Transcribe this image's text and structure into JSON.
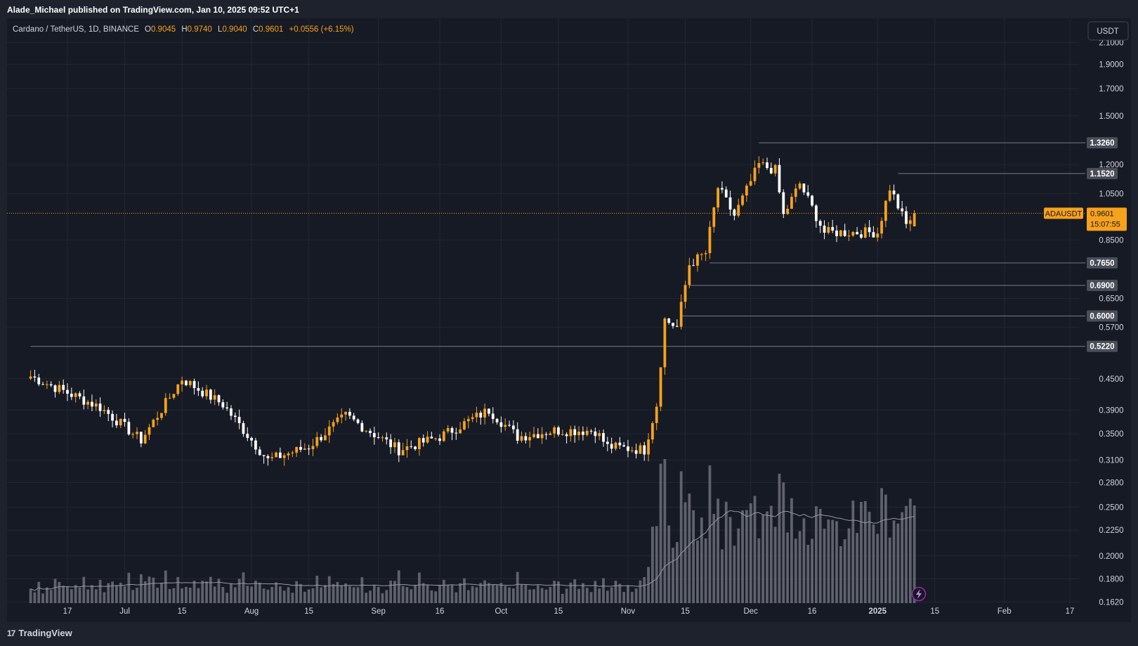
{
  "header": {
    "published": "Alade_Michael published on TradingView.com, Jan 10, 2025 09:52 UTC+1"
  },
  "legend": {
    "symbol": "Cardano / TetherUS, 1D, BINANCE",
    "o_label": "O",
    "o": "0.9045",
    "h_label": "H",
    "h": "0.9740",
    "l_label": "L",
    "l": "0.9040",
    "c_label": "C",
    "c": "0.9601",
    "change": "+0.0556 (+6.15%)"
  },
  "currency_button": "USDT",
  "footer": {
    "brand": "TradingView"
  },
  "colors": {
    "up": "#f7a21b",
    "down": "#ffffff",
    "background": "#161a25",
    "grid": "#232733",
    "axis_text": "#d1d4dc",
    "level_line": "#787b86",
    "price_line": "#f7a21b",
    "volume": "#787b86",
    "volume_ma": "#9598a1"
  },
  "chart_data": {
    "type": "candlestick",
    "symbol": "ADAUSDT",
    "scale": "log",
    "ylim": [
      0.155,
      2.3
    ],
    "y_ticks": [
      "2.1000",
      "1.9000",
      "1.7000",
      "1.5000",
      "1.2000",
      "1.0500",
      "0.8500",
      "0.6500",
      "0.5700",
      "0.4500",
      "0.3900",
      "0.3500",
      "0.3100",
      "0.2800",
      "0.2500",
      "0.2250",
      "0.2000",
      "0.1800",
      "0.1620"
    ],
    "x_ticks": [
      {
        "label": "17",
        "date": "2024-06-17"
      },
      {
        "label": "Jul",
        "date": "2024-07-01"
      },
      {
        "label": "15",
        "date": "2024-07-15"
      },
      {
        "label": "Aug",
        "date": "2024-08-01"
      },
      {
        "label": "15",
        "date": "2024-08-15"
      },
      {
        "label": "Sep",
        "date": "2024-09-01"
      },
      {
        "label": "16",
        "date": "2024-09-16"
      },
      {
        "label": "Oct",
        "date": "2024-10-01"
      },
      {
        "label": "15",
        "date": "2024-10-15"
      },
      {
        "label": "Nov",
        "date": "2024-11-01"
      },
      {
        "label": "15",
        "date": "2024-11-15"
      },
      {
        "label": "Dec",
        "date": "2024-12-01"
      },
      {
        "label": "16",
        "date": "2024-12-16"
      },
      {
        "label": "2025",
        "date": "2025-01-01"
      },
      {
        "label": "15",
        "date": "2025-01-15"
      },
      {
        "label": "Feb",
        "date": "2025-02-01"
      },
      {
        "label": "17",
        "date": "2025-02-17"
      }
    ],
    "levels": [
      {
        "label": "1.3260",
        "value": 1.326,
        "from": "2024-12-03"
      },
      {
        "label": "1.1520",
        "value": 1.152,
        "from": "2025-01-06"
      },
      {
        "label": "0.7650",
        "value": 0.765,
        "from": "2024-11-21"
      },
      {
        "label": "0.6900",
        "value": 0.69,
        "from": "2024-11-16"
      },
      {
        "label": "0.6000",
        "value": 0.6,
        "from": "2024-11-14"
      },
      {
        "label": "0.5220",
        "value": 0.522,
        "from": "2024-06-08"
      }
    ],
    "last_price": {
      "symbol": "ADAUSDT",
      "price": "0.9601",
      "value": 0.9601,
      "countdown": "15:07:55"
    },
    "key_closes": [
      {
        "date": "2024-06-08",
        "close": 0.455
      },
      {
        "date": "2024-06-25",
        "close": 0.395
      },
      {
        "date": "2024-07-05",
        "close": 0.34
      },
      {
        "date": "2024-07-15",
        "close": 0.45
      },
      {
        "date": "2024-07-25",
        "close": 0.4
      },
      {
        "date": "2024-08-05",
        "close": 0.31
      },
      {
        "date": "2024-08-15",
        "close": 0.33
      },
      {
        "date": "2024-08-24",
        "close": 0.38
      },
      {
        "date": "2024-09-06",
        "close": 0.325
      },
      {
        "date": "2024-09-16",
        "close": 0.345
      },
      {
        "date": "2024-09-28",
        "close": 0.39
      },
      {
        "date": "2024-10-05",
        "close": 0.345
      },
      {
        "date": "2024-10-14",
        "close": 0.355
      },
      {
        "date": "2024-10-24",
        "close": 0.355
      },
      {
        "date": "2024-10-27",
        "close": 0.33
      },
      {
        "date": "2024-11-05",
        "close": 0.325
      },
      {
        "date": "2024-11-08",
        "close": 0.4
      },
      {
        "date": "2024-11-10",
        "close": 0.59
      },
      {
        "date": "2024-11-13",
        "close": 0.57
      },
      {
        "date": "2024-11-16",
        "close": 0.76
      },
      {
        "date": "2024-11-20",
        "close": 0.8
      },
      {
        "date": "2024-11-23",
        "close": 1.08
      },
      {
        "date": "2024-11-27",
        "close": 0.95
      },
      {
        "date": "2024-12-03",
        "close": 1.2
      },
      {
        "date": "2024-12-07",
        "close": 1.17
      },
      {
        "date": "2024-12-09",
        "close": 0.95
      },
      {
        "date": "2024-12-13",
        "close": 1.1
      },
      {
        "date": "2024-12-19",
        "close": 0.88
      },
      {
        "date": "2024-12-28",
        "close": 0.88
      },
      {
        "date": "2025-01-01",
        "close": 0.88
      },
      {
        "date": "2025-01-04",
        "close": 1.08
      },
      {
        "date": "2025-01-08",
        "close": 0.91
      },
      {
        "date": "2025-01-10",
        "close": 0.9601
      }
    ],
    "volume": {
      "unit": "relative (0-1 of panel height)",
      "ma_label": "volume moving average"
    }
  }
}
